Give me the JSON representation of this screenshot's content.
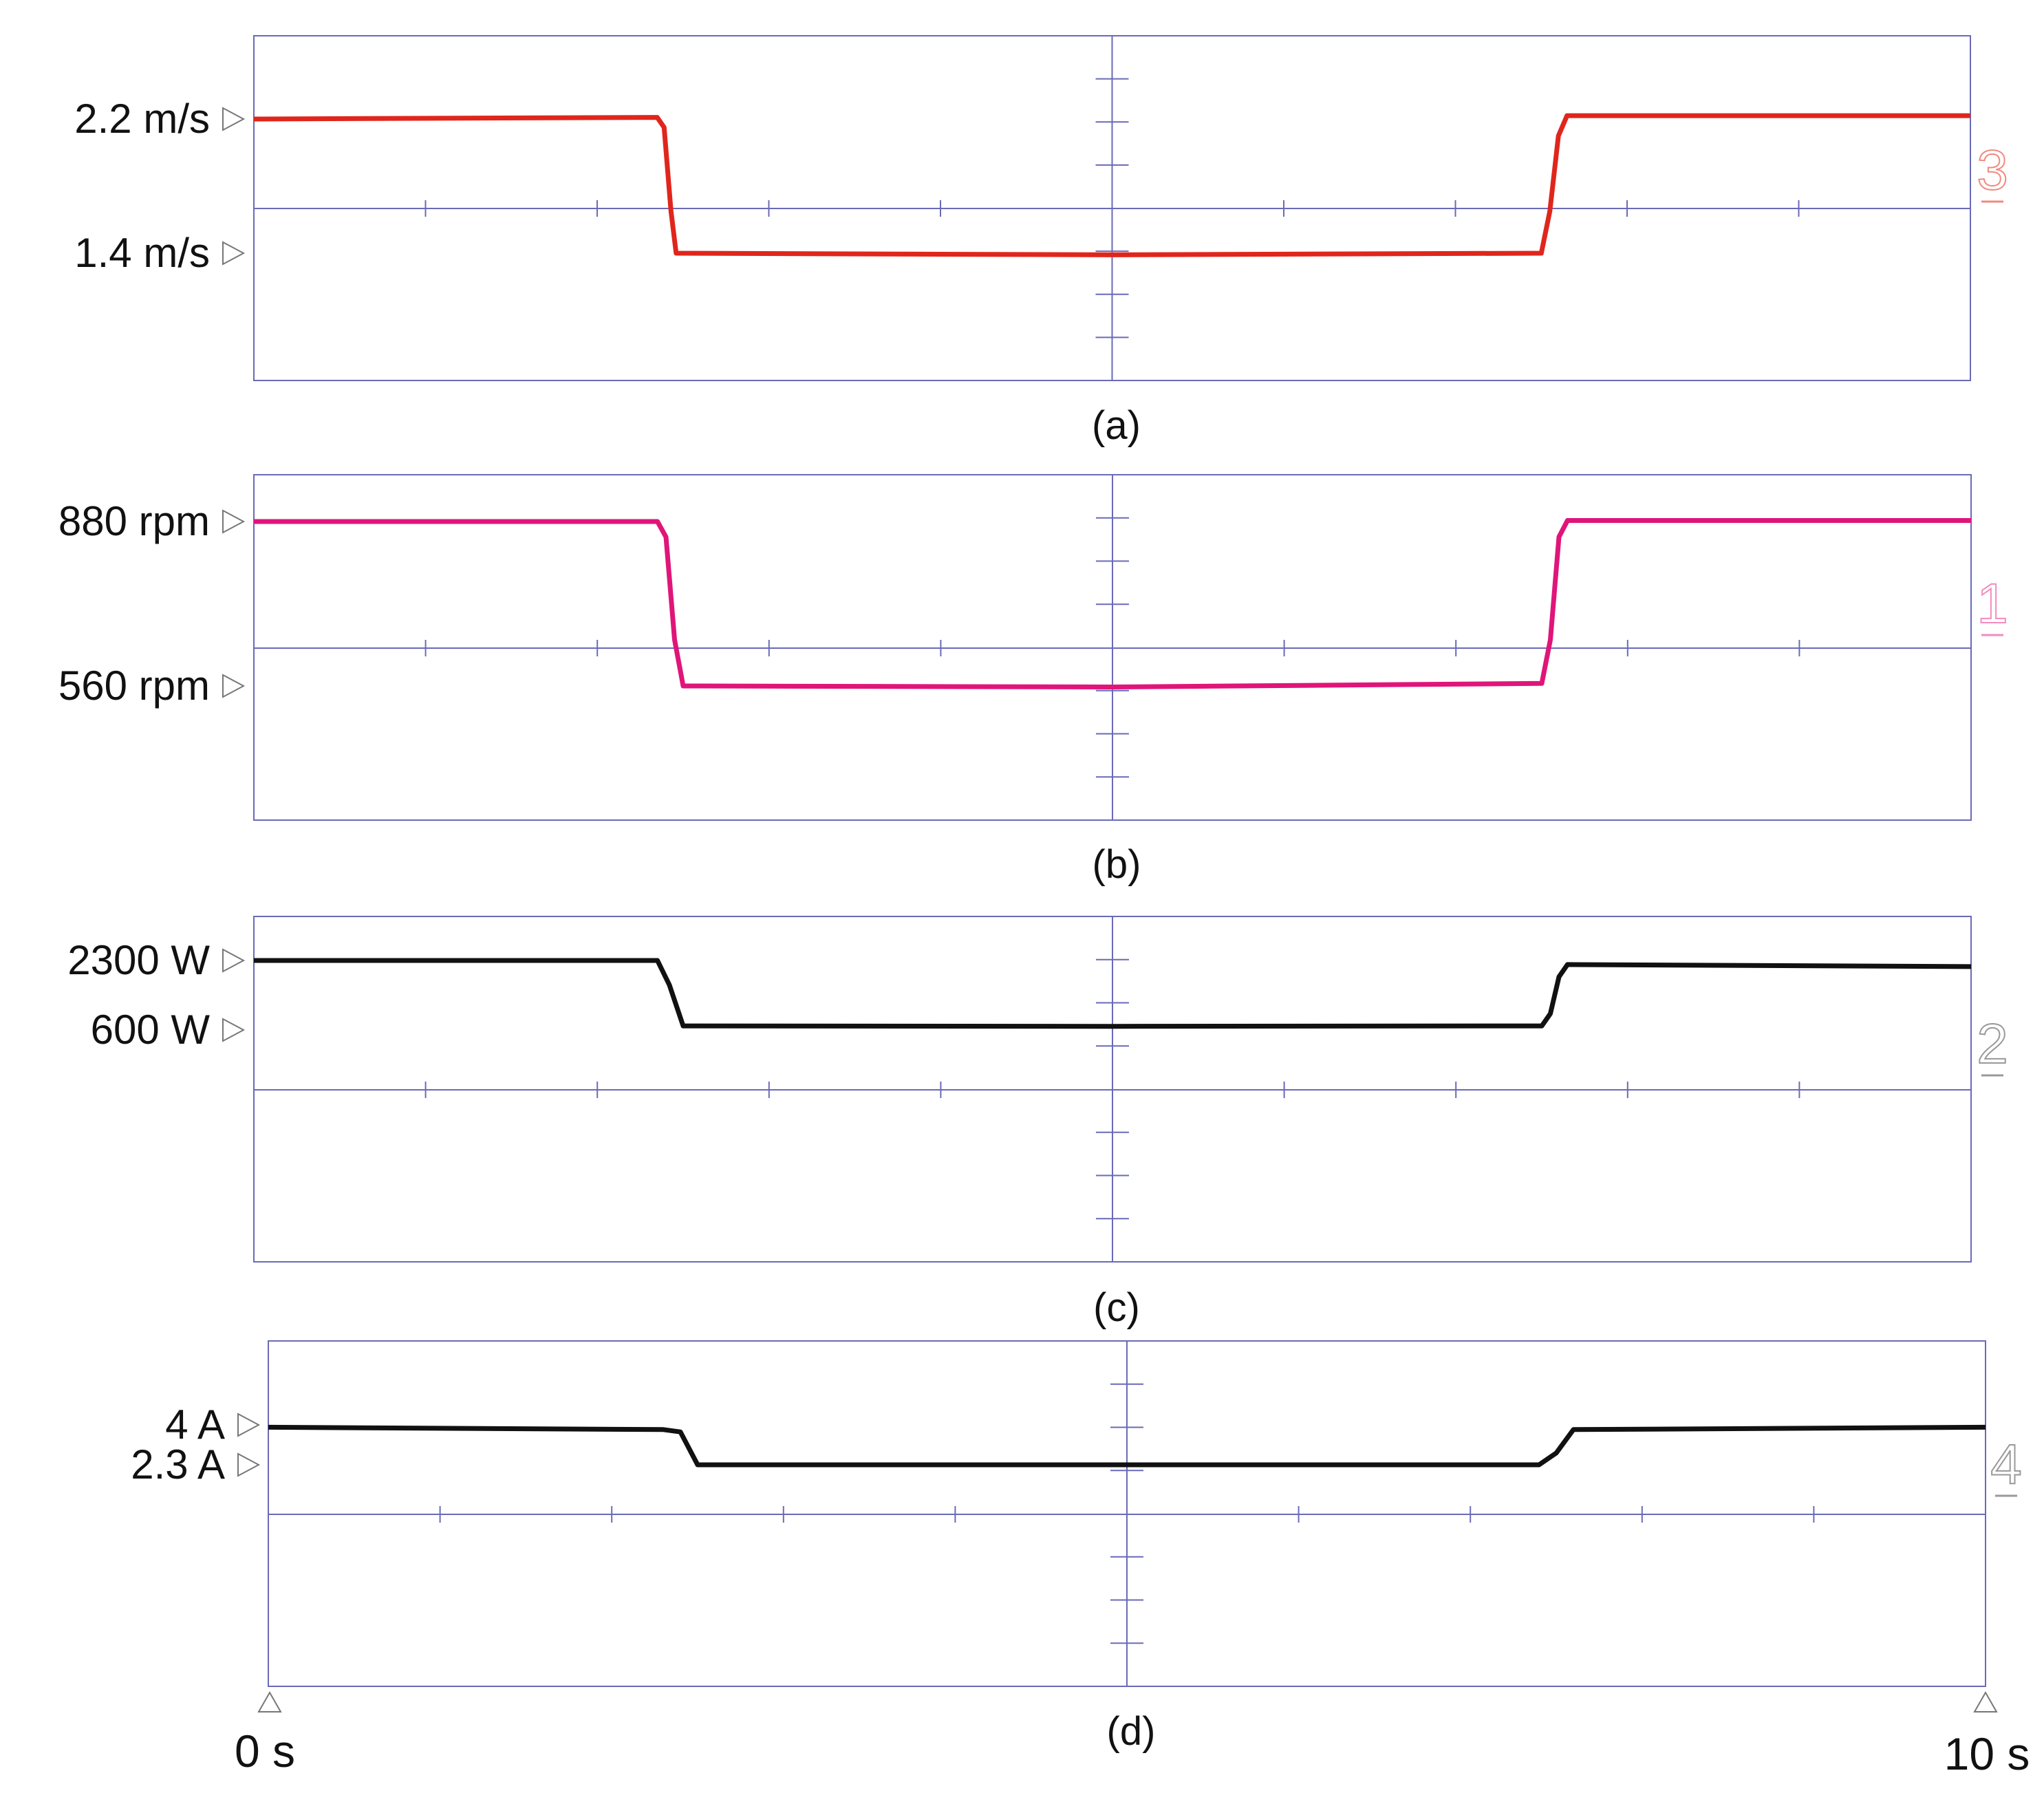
{
  "figure": {
    "time_start_label": "0 s",
    "time_end_label": "10 s"
  },
  "chart_data": [
    {
      "type": "line",
      "caption": "(a)",
      "channel": "3",
      "ref_levels": [
        {
          "label": "2.2 m/s",
          "value": 2.2
        },
        {
          "label": "1.4 m/s",
          "value": 1.4
        }
      ],
      "xlim": [
        0,
        10
      ],
      "colors": {
        "trace": "#e0261c",
        "channel": "#f08a80"
      },
      "series": [
        {
          "x": [
            0,
            2.35,
            2.39,
            2.43,
            2.46,
            5.0,
            7.5,
            7.55,
            7.6,
            7.65,
            10
          ],
          "y": [
            2.2,
            2.21,
            2.15,
            1.65,
            1.4,
            1.39,
            1.4,
            1.65,
            2.1,
            2.22,
            2.22
          ]
        }
      ]
    },
    {
      "type": "line",
      "caption": "(b)",
      "channel": "1",
      "ref_levels": [
        {
          "label": "880 rpm",
          "value": 880
        },
        {
          "label": "560 rpm",
          "value": 560
        }
      ],
      "xlim": [
        0,
        10
      ],
      "colors": {
        "trace": "#e0157a",
        "channel": "#f28cbf"
      },
      "series": [
        {
          "x": [
            0,
            2.35,
            2.4,
            2.45,
            2.5,
            5.0,
            7.5,
            7.55,
            7.6,
            7.65,
            10
          ],
          "y": [
            880,
            880,
            850,
            650,
            560,
            558,
            565,
            650,
            850,
            882,
            882
          ]
        }
      ]
    },
    {
      "type": "line",
      "caption": "(c)",
      "channel": "2",
      "ref_levels": [
        {
          "label": "2300 W",
          "value": 2300
        },
        {
          "label": "600 W",
          "value": 600
        }
      ],
      "xlim": [
        0,
        10
      ],
      "colors": {
        "trace": "#111111",
        "channel": "#999999"
      },
      "series": [
        {
          "x": [
            0,
            2.35,
            2.42,
            2.5,
            5.0,
            7.5,
            7.55,
            7.6,
            7.65,
            10
          ],
          "y": [
            2300,
            2300,
            1700,
            700,
            690,
            700,
            1000,
            1900,
            2200,
            2150
          ]
        }
      ]
    },
    {
      "type": "line",
      "caption": "(d)",
      "channel": "4",
      "ref_levels": [
        {
          "label": "4 A",
          "value": 4
        },
        {
          "label": "2.3 A",
          "value": 2.3
        }
      ],
      "xlim": [
        0,
        10
      ],
      "colors": {
        "trace": "#111111",
        "channel": "#999999"
      },
      "series": [
        {
          "x": [
            0,
            2.3,
            2.4,
            2.5,
            5.0,
            7.4,
            7.5,
            7.6,
            10
          ],
          "y": [
            3.9,
            3.8,
            3.7,
            2.3,
            2.3,
            2.3,
            2.8,
            3.8,
            3.9
          ]
        }
      ]
    }
  ]
}
